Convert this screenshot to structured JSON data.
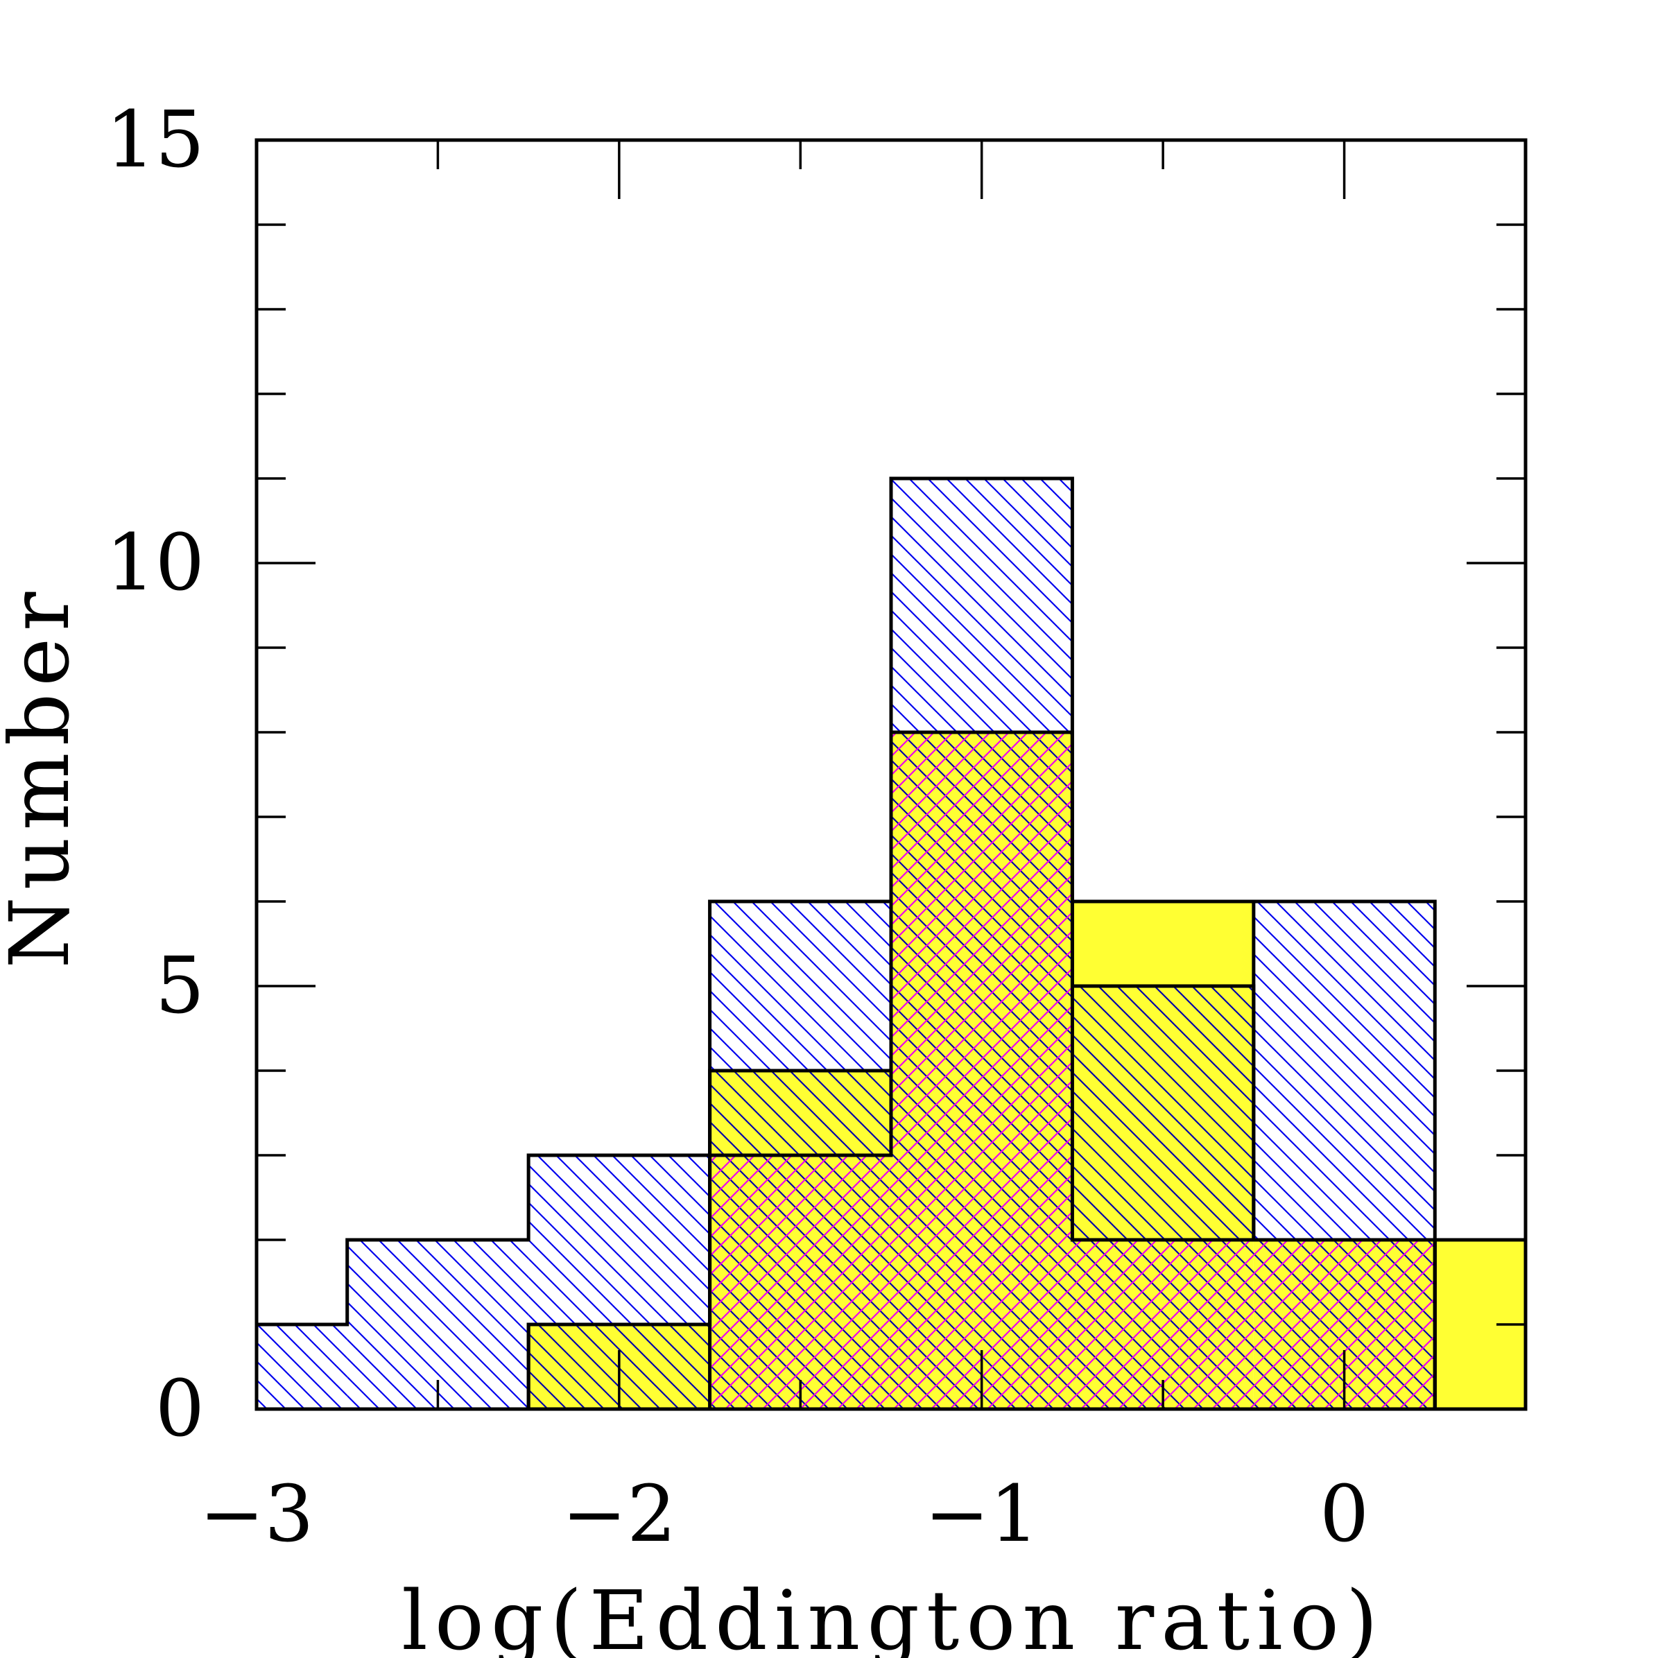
{
  "chart_data": {
    "type": "bar",
    "subtype": "step-histogram-overlay",
    "xlabel": "log(Eddington ratio)",
    "ylabel": "Number",
    "xlim": [
      -3,
      0.5
    ],
    "ylim": [
      0,
      15
    ],
    "x_ticks": [
      -3,
      -2,
      -1,
      0
    ],
    "x_tick_labels": [
      "−3",
      "−2",
      "−1",
      "0"
    ],
    "y_ticks": [
      0,
      5,
      10,
      15
    ],
    "y_tick_labels": [
      "0",
      "5",
      "10",
      "15"
    ],
    "y_minor_step": 1,
    "x_minor_step": 0.5,
    "bin_edges": [
      -3.0,
      -2.75,
      -2.25,
      -1.75,
      -1.25,
      -0.75,
      -0.25,
      0.25,
      0.5
    ],
    "series": [
      {
        "values": [
          1,
          2,
          3,
          6,
          11,
          6,
          6,
          0
        ],
        "fill": "#ffffff",
        "hatch_color": "#0000ee",
        "hatch": "diagonal-down"
      },
      {
        "values": [
          0,
          0,
          1,
          4,
          8,
          6,
          2,
          2
        ],
        "fill": "#ffff33",
        "hatch": "none"
      },
      {
        "values": [
          0,
          0,
          1,
          4,
          8,
          5,
          2,
          0
        ],
        "fill": "none",
        "hatch_color": "#0000aa",
        "hatch": "diagonal-down"
      },
      {
        "values": [
          0,
          0,
          0,
          3,
          8,
          2,
          2,
          0
        ],
        "fill": "none",
        "hatch_color": "#ee00ee",
        "hatch": "diagonal-up"
      }
    ],
    "grid": false,
    "legend": "none"
  }
}
